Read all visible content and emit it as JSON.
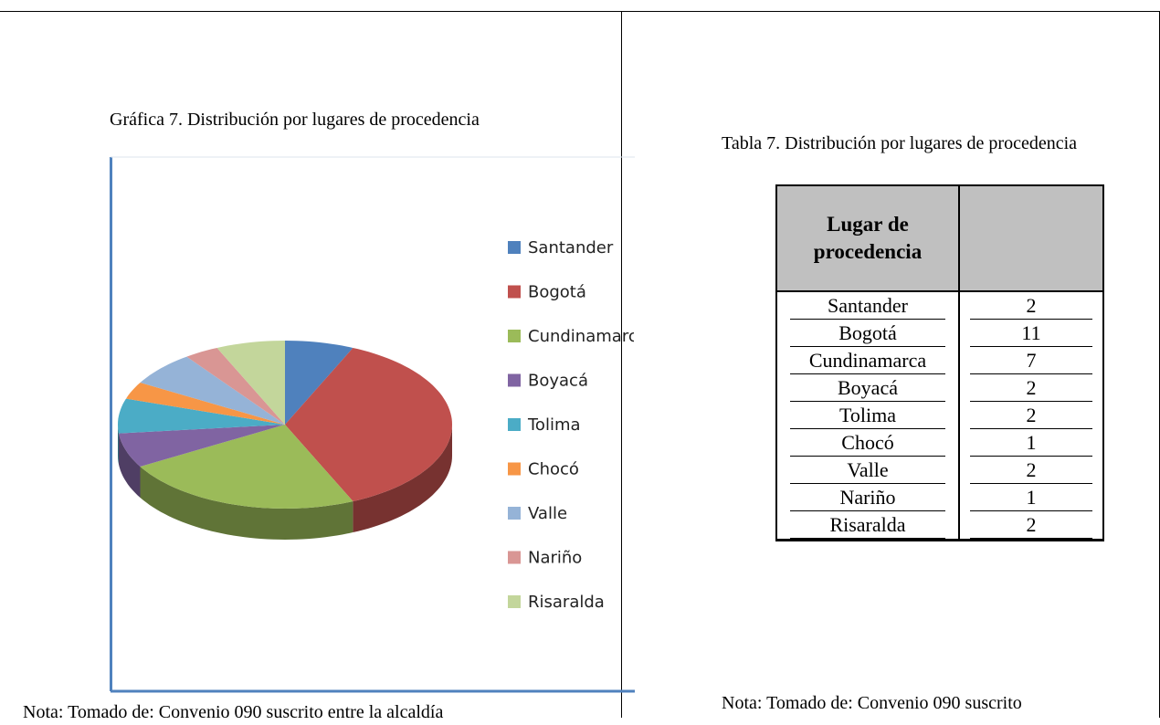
{
  "figure_caption": "Gráfica 7. Distribución por lugares de procedencia",
  "chart_data": {
    "type": "pie",
    "categories": [
      "Santander",
      "Bogotá",
      "Cundinamarca",
      "Boyacá",
      "Tolima",
      "Chocó",
      "Valle",
      "Nariño",
      "Risaralda"
    ],
    "values": [
      2,
      11,
      7,
      2,
      2,
      1,
      2,
      1,
      2
    ],
    "colors": [
      "#4f81bd",
      "#c0504d",
      "#9bbb59",
      "#8064a2",
      "#4bacc6",
      "#f79646",
      "#95b3d7",
      "#d99694",
      "#c3d69b"
    ],
    "legend": "right"
  },
  "figure_note": "Nota: Tomado de: Convenio 090 suscrito entre la alcaldía",
  "table_caption": "Tabla 7. Distribución por lugares de procedencia",
  "table": {
    "header": [
      "Lugar de procedencia"
    ],
    "rows": [
      [
        "Santander",
        2
      ],
      [
        "Bogotá",
        11
      ],
      [
        "Cundinamarca",
        7
      ],
      [
        "Boyacá",
        2
      ],
      [
        "Tolima",
        2
      ],
      [
        "Chocó",
        1
      ],
      [
        "Valle",
        2
      ],
      [
        "Nariño",
        1
      ],
      [
        "Risaralda",
        2
      ]
    ]
  },
  "table_note": "Nota: Tomado de: Convenio 090 suscrito"
}
